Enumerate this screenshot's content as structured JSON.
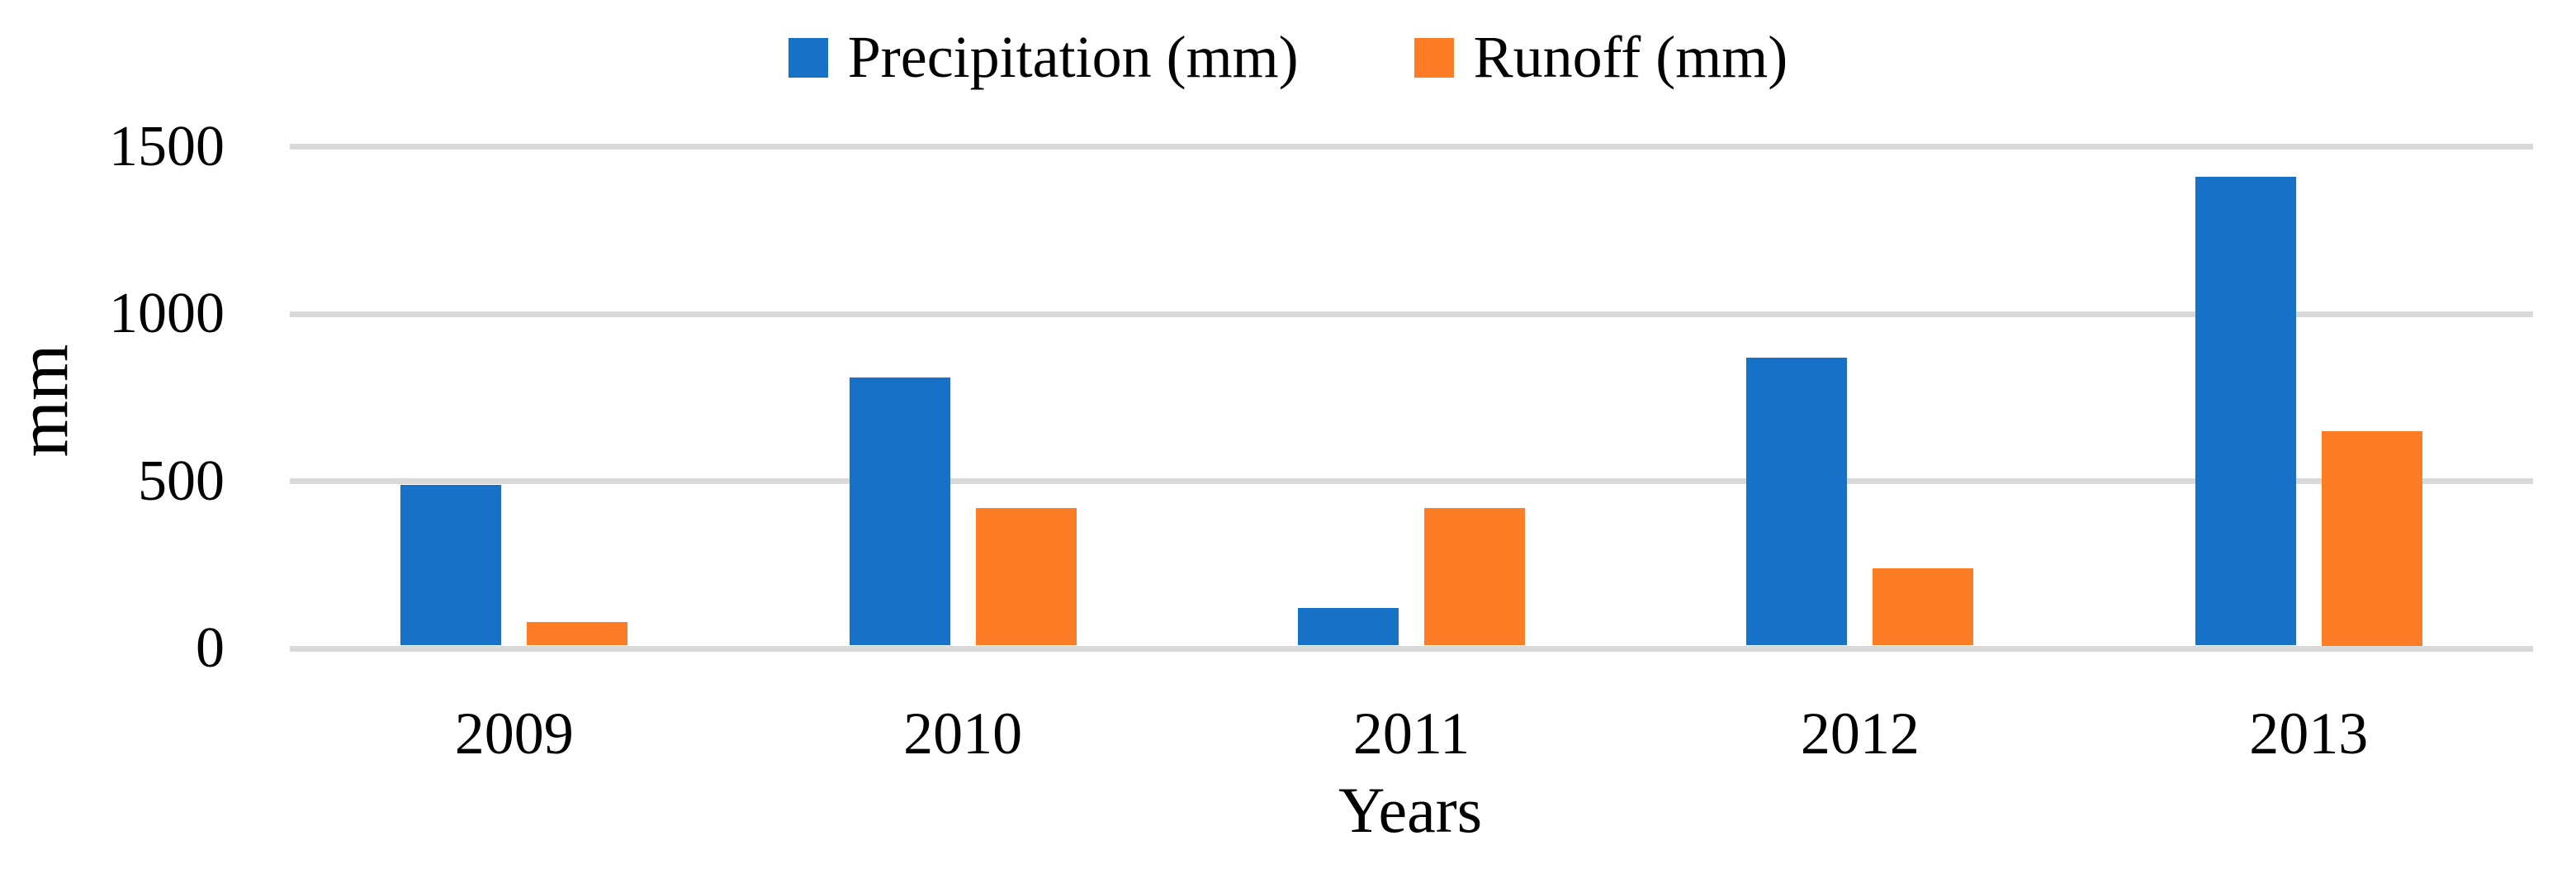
{
  "chart_data": {
    "type": "bar",
    "categories": [
      "2009",
      "2010",
      "2011",
      "2012",
      "2013"
    ],
    "series": [
      {
        "name": "Precipitation (mm)",
        "color": "#1772C7",
        "values": [
          490,
          810,
          120,
          870,
          1410
        ]
      },
      {
        "name": "Runoff (mm)",
        "color": "#FC7D26",
        "values": [
          80,
          420,
          420,
          240,
          650
        ]
      }
    ],
    "xlabel": "Years",
    "ylabel": "mm",
    "ylim": [
      0,
      1500
    ],
    "yticks": [
      0,
      500,
      1000,
      1500
    ],
    "grid": true,
    "legend_position": "top center",
    "gridline_color": "#D9D9D9",
    "text_color": "#000000",
    "background_color": "#FFFFFF"
  }
}
